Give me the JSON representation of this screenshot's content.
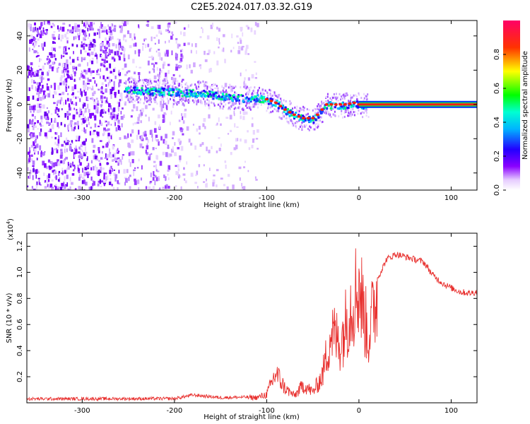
{
  "title": "C2E5.2024.017.03.32.G19",
  "chart_data": [
    {
      "type": "heatmap",
      "xlabel": "Height of straight line (km)",
      "ylabel": "Frequency (Hz)",
      "xlim": [
        -360,
        128
      ],
      "ylim": [
        -50,
        49
      ],
      "x_ticks": [
        -300,
        -200,
        -100,
        0,
        100
      ],
      "y_ticks": [
        -40,
        -20,
        0,
        20,
        40
      ],
      "colorbar": {
        "label": "Normalized spectral amplitude",
        "range": [
          0,
          1
        ],
        "ticks": [
          "0.0",
          "0.2",
          "0.4",
          "0.6",
          "0.8"
        ],
        "colors": [
          "#ffffff",
          "#8a00ff",
          "#2200ff",
          "#00e8ff",
          "#00ff00",
          "#ffff00",
          "#ff0000",
          "#ff0066"
        ]
      },
      "ridge": {
        "x": [
          -250,
          -230,
          -210,
          -190,
          -170,
          -150,
          -130,
          -110,
          -100,
          -90,
          -80,
          -70,
          -60,
          -50,
          -45,
          -35,
          -25,
          -15,
          -5,
          0,
          128
        ],
        "y": [
          9,
          8,
          8,
          7,
          7,
          5,
          4,
          4,
          3,
          1,
          -3,
          -6,
          -8,
          -8,
          -6,
          0,
          0,
          0,
          1,
          0,
          0
        ]
      }
    },
    {
      "type": "line",
      "xlabel": "Height of straight line (km)",
      "ylabel": "SNR (10 * v/v)",
      "y_multiplier": "(x10",
      "y_multiplier_exp": "4",
      "y_multiplier_close": ")",
      "xlim": [
        -360,
        128
      ],
      "ylim": [
        0,
        13000
      ],
      "x_ticks": [
        -300,
        -200,
        -100,
        0,
        100
      ],
      "y_ticks": [
        "0.2",
        "0.4",
        "0.6",
        "0.8",
        "1.0",
        "1.2"
      ],
      "series_color": "#e8302e",
      "envelope": {
        "x": [
          -360,
          -200,
          -180,
          -150,
          -110,
          -100,
          -90,
          -80,
          -70,
          -60,
          -50,
          -40,
          -30,
          -20,
          -10,
          0,
          10,
          20,
          30,
          40,
          50,
          60,
          70,
          80,
          90,
          100,
          110,
          120,
          128
        ],
        "y": [
          300,
          320,
          600,
          400,
          450,
          700,
          2500,
          1200,
          600,
          1500,
          900,
          2200,
          6000,
          5000,
          8000,
          10000,
          5500,
          9500,
          11000,
          11400,
          11200,
          11000,
          10800,
          9800,
          9200,
          8800,
          8500,
          8400,
          8500
        ]
      }
    }
  ]
}
